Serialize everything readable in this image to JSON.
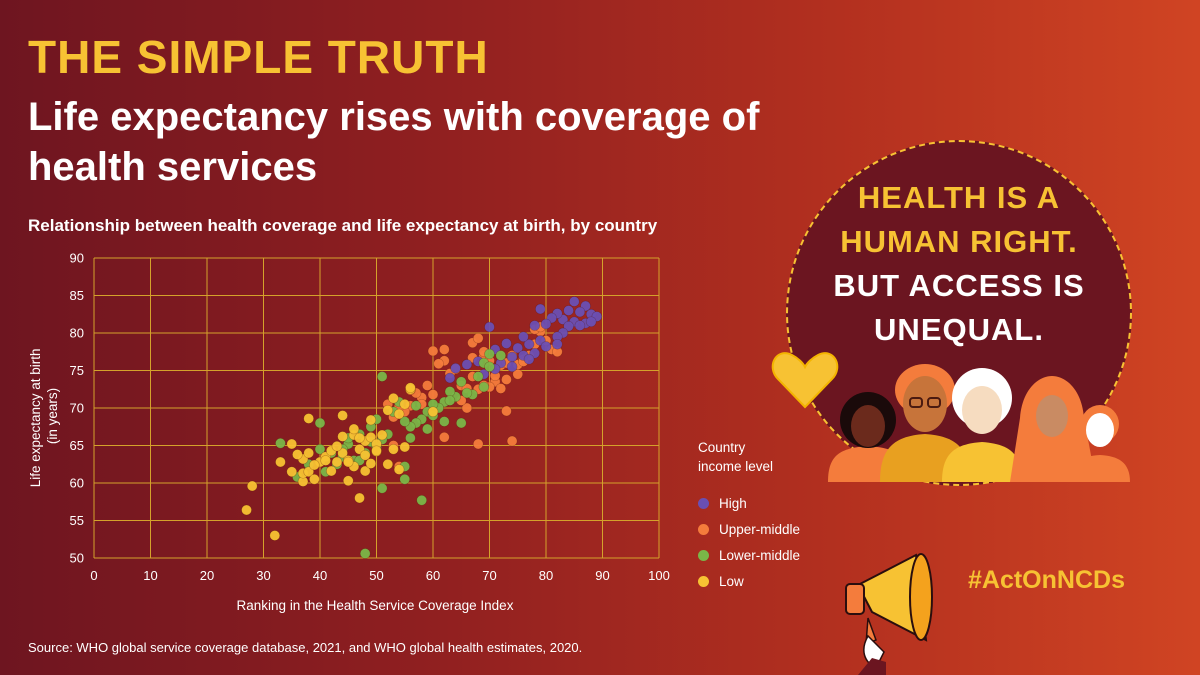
{
  "kicker": "THE SIMPLE TRUTH",
  "title": "Life expectancy rises with coverage of health services",
  "subtitle": "Relationship between health coverage and life expectancy at birth, by country",
  "source": "Source: WHO global service coverage database, 2021, and WHO global health estimates, 2020.",
  "slogan": {
    "line1": "HEALTH IS A",
    "line2": "HUMAN RIGHT.",
    "line3": "BUT ACCESS IS",
    "line4": "UNEQUAL."
  },
  "hashtag": "#ActOnNCDs",
  "legend": {
    "title_line1": "Country",
    "title_line2": "income level",
    "items": [
      {
        "label": "High",
        "color": "#6a4fb3"
      },
      {
        "label": "Upper-middle",
        "color": "#f47c3c"
      },
      {
        "label": "Lower-middle",
        "color": "#7ab648"
      },
      {
        "label": "Low",
        "color": "#f7c233"
      }
    ]
  },
  "colors": {
    "grid": "#d4a22b",
    "text": "#ffffff",
    "accent": "#f7c233"
  },
  "chart_data": {
    "type": "scatter",
    "title": "Relationship between health coverage and life expectancy at birth, by country",
    "xlabel": "Ranking in the Health Service Coverage Index",
    "ylabel_line1": "Life expectancy at birth",
    "ylabel_line2": "(in years)",
    "xlim": [
      0,
      100
    ],
    "ylim": [
      50,
      90
    ],
    "xticks": [
      0,
      10,
      20,
      30,
      40,
      50,
      60,
      70,
      80,
      90,
      100
    ],
    "yticks": [
      50,
      55,
      60,
      65,
      70,
      75,
      80,
      85,
      90
    ],
    "grid": true,
    "series": [
      {
        "name": "High",
        "color": "#6a4fb3",
        "points": [
          [
            85,
            84.2
          ],
          [
            87,
            83.6
          ],
          [
            86,
            82.8
          ],
          [
            84,
            83.0
          ],
          [
            88,
            82.5
          ],
          [
            83,
            81.8
          ],
          [
            89,
            82.2
          ],
          [
            85,
            81.5
          ],
          [
            87,
            81.3
          ],
          [
            82,
            82.6
          ],
          [
            86,
            81.0
          ],
          [
            84,
            80.9
          ],
          [
            81,
            82.0
          ],
          [
            79,
            83.2
          ],
          [
            80,
            81.2
          ],
          [
            88,
            81.5
          ],
          [
            83,
            80.0
          ],
          [
            82,
            79.5
          ],
          [
            78,
            81.0
          ],
          [
            79,
            79.0
          ],
          [
            80,
            78.2
          ],
          [
            77,
            78.5
          ],
          [
            76,
            79.5
          ],
          [
            75,
            78.0
          ],
          [
            76,
            77.0
          ],
          [
            78,
            77.3
          ],
          [
            73,
            78.6
          ],
          [
            74,
            76.8
          ],
          [
            71,
            77.8
          ],
          [
            72,
            76.0
          ],
          [
            70,
            80.8
          ],
          [
            68,
            76.2
          ],
          [
            66,
            75.8
          ],
          [
            63,
            74.0
          ],
          [
            69,
            74.5
          ],
          [
            64,
            75.3
          ],
          [
            71,
            75.2
          ],
          [
            82,
            78.5
          ],
          [
            77,
            76.5
          ],
          [
            74,
            75.5
          ]
        ]
      },
      {
        "name": "Upper-middle",
        "color": "#f47c3c",
        "points": [
          [
            60,
            77.6
          ],
          [
            62,
            77.8
          ],
          [
            67,
            76.7
          ],
          [
            69,
            77.0
          ],
          [
            70,
            76.3
          ],
          [
            72,
            75.7
          ],
          [
            73,
            76.0
          ],
          [
            74,
            77.0
          ],
          [
            75,
            75.8
          ],
          [
            76,
            76.5
          ],
          [
            77,
            77.0
          ],
          [
            78,
            78.5
          ],
          [
            79,
            80.2
          ],
          [
            80,
            79.0
          ],
          [
            81,
            77.8
          ],
          [
            82,
            77.5
          ],
          [
            78,
            80.5
          ],
          [
            79,
            80.8
          ],
          [
            76,
            76.2
          ],
          [
            73,
            73.8
          ],
          [
            71,
            73.5
          ],
          [
            70,
            72.8
          ],
          [
            69,
            73.0
          ],
          [
            68,
            72.5
          ],
          [
            67,
            74.2
          ],
          [
            65,
            73.0
          ],
          [
            66,
            72.6
          ],
          [
            64,
            75.2
          ],
          [
            63,
            74.6
          ],
          [
            62,
            76.3
          ],
          [
            61,
            75.9
          ],
          [
            59,
            73.0
          ],
          [
            58,
            71.4
          ],
          [
            57,
            72.0
          ],
          [
            56,
            70.3
          ],
          [
            55,
            69.5
          ],
          [
            54,
            70.2
          ],
          [
            53,
            68.8
          ],
          [
            52,
            70.5
          ],
          [
            66,
            70.0
          ],
          [
            73,
            69.6
          ],
          [
            74,
            65.6
          ],
          [
            68,
            65.2
          ],
          [
            62,
            66.1
          ],
          [
            58,
            70.5
          ],
          [
            65,
            71.0
          ],
          [
            60,
            71.8
          ],
          [
            71,
            74.3
          ],
          [
            75,
            74.5
          ],
          [
            72,
            72.6
          ],
          [
            56,
            72.4
          ],
          [
            54,
            62.2
          ],
          [
            53,
            65.0
          ],
          [
            69,
            77.5
          ],
          [
            67,
            78.7
          ],
          [
            68,
            79.3
          ]
        ]
      },
      {
        "name": "Lower-middle",
        "color": "#7ab648",
        "points": [
          [
            72,
            77.0
          ],
          [
            70,
            77.2
          ],
          [
            69,
            76.0
          ],
          [
            70,
            75.5
          ],
          [
            68,
            74.2
          ],
          [
            69,
            72.8
          ],
          [
            67,
            71.8
          ],
          [
            66,
            72.0
          ],
          [
            65,
            73.5
          ],
          [
            64,
            71.5
          ],
          [
            63,
            72.2
          ],
          [
            62,
            70.8
          ],
          [
            61,
            70.0
          ],
          [
            60,
            70.5
          ],
          [
            59,
            69.5
          ],
          [
            58,
            68.5
          ],
          [
            57,
            68.0
          ],
          [
            56,
            67.5
          ],
          [
            55,
            68.2
          ],
          [
            54,
            70.8
          ],
          [
            53,
            69.5
          ],
          [
            52,
            66.5
          ],
          [
            51,
            65.8
          ],
          [
            50,
            64.8
          ],
          [
            50,
            68.5
          ],
          [
            49,
            67.5
          ],
          [
            48,
            64.0
          ],
          [
            47,
            66.5
          ],
          [
            46,
            63.0
          ],
          [
            45,
            65.2
          ],
          [
            44,
            64.5
          ],
          [
            43,
            62.5
          ],
          [
            42,
            64.0
          ],
          [
            41,
            61.5
          ],
          [
            40,
            68.0
          ],
          [
            40,
            64.5
          ],
          [
            38,
            62.5
          ],
          [
            36,
            60.8
          ],
          [
            33,
            65.3
          ],
          [
            56,
            66.0
          ],
          [
            55,
            62.2
          ],
          [
            55,
            60.5
          ],
          [
            51,
            59.3
          ],
          [
            58,
            57.7
          ],
          [
            48,
            50.6
          ],
          [
            51,
            74.2
          ],
          [
            63,
            71.0
          ],
          [
            60,
            69.0
          ],
          [
            65,
            68.0
          ],
          [
            62,
            68.2
          ],
          [
            49,
            65.5
          ],
          [
            47,
            63.0
          ],
          [
            45,
            66.0
          ],
          [
            44,
            63.5
          ],
          [
            57,
            70.3
          ],
          [
            59,
            67.2
          ]
        ]
      },
      {
        "name": "Low",
        "color": "#f7c233",
        "points": [
          [
            27,
            56.4
          ],
          [
            28,
            59.6
          ],
          [
            32,
            53.0
          ],
          [
            33,
            62.8
          ],
          [
            35,
            65.2
          ],
          [
            37,
            60.2
          ],
          [
            37,
            61.3
          ],
          [
            37,
            63.2
          ],
          [
            38,
            61.5
          ],
          [
            38,
            68.6
          ],
          [
            39,
            60.5
          ],
          [
            40,
            62.8
          ],
          [
            41,
            63.5
          ],
          [
            42,
            64.3
          ],
          [
            43,
            62.8
          ],
          [
            44,
            64.0
          ],
          [
            44,
            69.0
          ],
          [
            45,
            60.3
          ],
          [
            45,
            63.0
          ],
          [
            46,
            66.4
          ],
          [
            46,
            62.2
          ],
          [
            47,
            64.5
          ],
          [
            47,
            58.0
          ],
          [
            48,
            63.7
          ],
          [
            48,
            65.6
          ],
          [
            49,
            68.4
          ],
          [
            49,
            66.1
          ],
          [
            50,
            65.2
          ],
          [
            50,
            64.2
          ],
          [
            51,
            66.4
          ],
          [
            52,
            62.5
          ],
          [
            53,
            64.5
          ],
          [
            54,
            61.8
          ],
          [
            54,
            69.2
          ],
          [
            55,
            70.5
          ],
          [
            56,
            72.5
          ],
          [
            56,
            72.7
          ],
          [
            55,
            64.8
          ],
          [
            46,
            67.2
          ],
          [
            41,
            63.0
          ],
          [
            39,
            62.4
          ],
          [
            35,
            61.5
          ],
          [
            48,
            61.6
          ],
          [
            53,
            71.3
          ],
          [
            60,
            69.5
          ],
          [
            52,
            69.7
          ],
          [
            45,
            62.8
          ],
          [
            43,
            64.9
          ],
          [
            50,
            64.3
          ],
          [
            49,
            62.6
          ],
          [
            47,
            66.0
          ],
          [
            44,
            66.2
          ],
          [
            42,
            61.6
          ],
          [
            36,
            63.8
          ],
          [
            38,
            64.0
          ]
        ]
      }
    ]
  }
}
